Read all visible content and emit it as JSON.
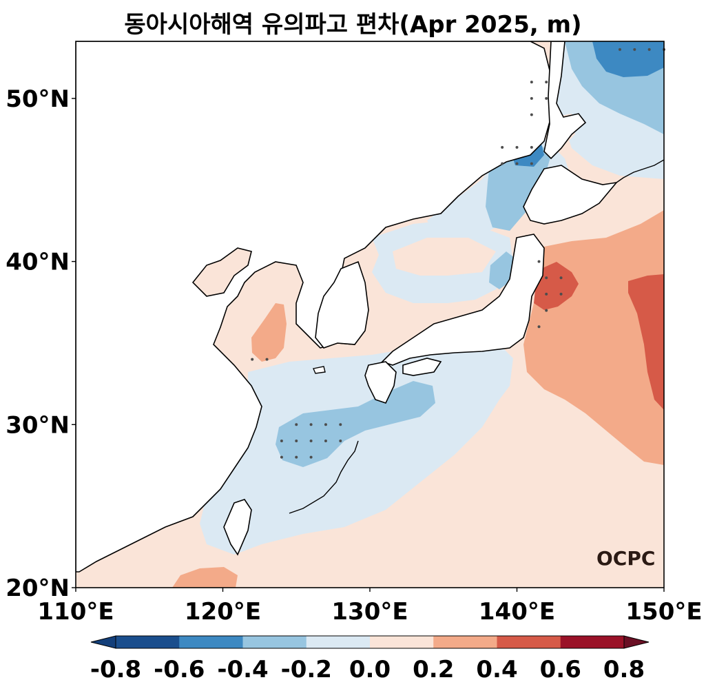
{
  "title": "동아시아해역 유의파고 편차(Apr 2025, m)",
  "logo_text": "OCPC",
  "map": {
    "lon_range": [
      110,
      150
    ],
    "lat_range": [
      20,
      53.5
    ],
    "lon_ticks": [
      "110°E",
      "120°E",
      "130°E",
      "140°E",
      "150°E"
    ],
    "lat_ticks": [
      "20°N",
      "30°N",
      "40°N",
      "50°N"
    ],
    "ocean_default_class": "0.0 to 0.2",
    "anomaly_regions": [
      {
        "class": "-0.4 to -0.2",
        "area": "Sea of Okhotsk, northeast"
      },
      {
        "class": "-0.6 to -0.4",
        "area": "Sea of Okhotsk, far northeast corner"
      },
      {
        "class": "-0.4 to -0.2",
        "area": "Tatar Strait / northern East Sea"
      },
      {
        "class": "-0.6 to -0.4",
        "area": "Tatar Strait near 46°N"
      },
      {
        "class": "-0.2 to 0.0",
        "area": "East Sea, central"
      },
      {
        "class": "-0.2 to 0.0",
        "area": "East China Sea to south of Japan"
      },
      {
        "class": "-0.4 to -0.2",
        "area": "East China Sea near 29°N, 124–134°E"
      },
      {
        "class": "0.2 to 0.4",
        "area": "Yellow Sea near 35°N, 122°E"
      },
      {
        "class": "0.2 to 0.4",
        "area": "Pacific east of Japan"
      },
      {
        "class": "0.4 to 0.6",
        "area": "Off Sanriku coast near 38°N, 142°E"
      },
      {
        "class": "0.4 to 0.6",
        "area": "Open Pacific near 36°N, 148°E"
      },
      {
        "class": "0.2 to 0.4",
        "area": "South China Sea coast near 20°N, 118°E"
      }
    ]
  },
  "colorbar": {
    "ticks": [
      "-0.8",
      "-0.6",
      "-0.4",
      "-0.2",
      "0.0",
      "0.2",
      "0.4",
      "0.6",
      "0.8"
    ],
    "colors": [
      "#133f7a",
      "#1a4e8d",
      "#3d89c2",
      "#97c5e0",
      "#dbe9f3",
      "#fae4d8",
      "#f3aa89",
      "#d65a48",
      "#9a1228",
      "#6a0f24"
    ],
    "extend": "both"
  },
  "colors": {
    "neg_06": "#3d89c2",
    "neg_04": "#97c5e0",
    "neg_02": "#dbe9f3",
    "pos_02": "#fae4d8",
    "pos_04": "#f3aa89",
    "pos_06": "#d65a48",
    "land": "#ffffff",
    "coast": "#000000",
    "stipple": "#4d4d4d"
  }
}
